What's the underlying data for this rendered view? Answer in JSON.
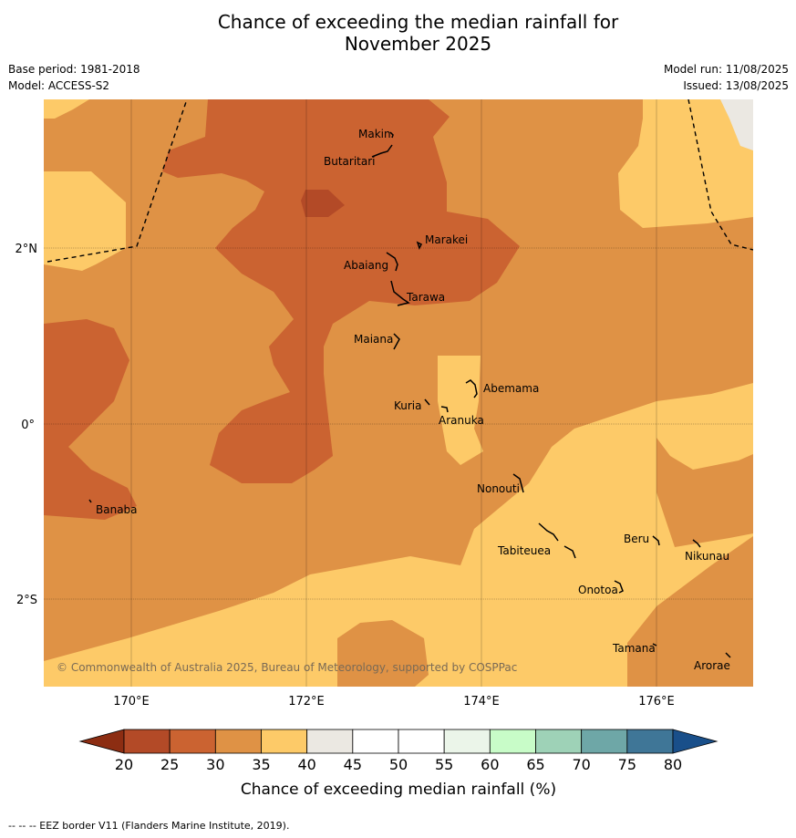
{
  "title_line1": "Chance of exceeding the median rainfall for",
  "title_line2": "November 2025",
  "meta": {
    "base_period": "Base period: 1981-2018",
    "model": "Model: ACCESS-S2",
    "model_run": "Model run: 11/08/2025",
    "issued": "Issued: 13/08/2025"
  },
  "copyright": "© Commonwealth of Australia 2025, Bureau of Meteorology, supported by COSPPac",
  "lon_ticks": [
    "170°E",
    "172°E",
    "174°E",
    "176°E"
  ],
  "lat_ticks": [
    "2°N",
    "0°",
    "2°S"
  ],
  "places": [
    {
      "name": "Makin"
    },
    {
      "name": "Butaritari"
    },
    {
      "name": "Marakei"
    },
    {
      "name": "Abaiang"
    },
    {
      "name": "Tarawa"
    },
    {
      "name": "Maiana"
    },
    {
      "name": "Abemama"
    },
    {
      "name": "Kuria"
    },
    {
      "name": "Aranuka"
    },
    {
      "name": "Nonouti"
    },
    {
      "name": "Banaba"
    },
    {
      "name": "Tabiteuea"
    },
    {
      "name": "Beru"
    },
    {
      "name": "Nikunau"
    },
    {
      "name": "Onotoa"
    },
    {
      "name": "Tamana"
    },
    {
      "name": "Arorae"
    }
  ],
  "colorbar": {
    "ticks": [
      "20",
      "25",
      "30",
      "35",
      "40",
      "45",
      "50",
      "55",
      "60",
      "65",
      "70",
      "75",
      "80"
    ],
    "label": "Chance of exceeding median rainfall (%)",
    "colors": [
      "#b34a27",
      "#cb6331",
      "#df9245",
      "#fdca68",
      "#ebe8e2",
      "#ffffff",
      "#ffffff",
      "#ebf5e9",
      "#c8fcc8",
      "#9ed2b7",
      "#6ea7a7",
      "#3f7697",
      "#194f8a"
    ],
    "under_color": "#8c2d12",
    "over_color": "#194f8a"
  },
  "legend_footer": "--  --  -- EEZ border V11 (Flanders Marine Institute, 2019)."
}
